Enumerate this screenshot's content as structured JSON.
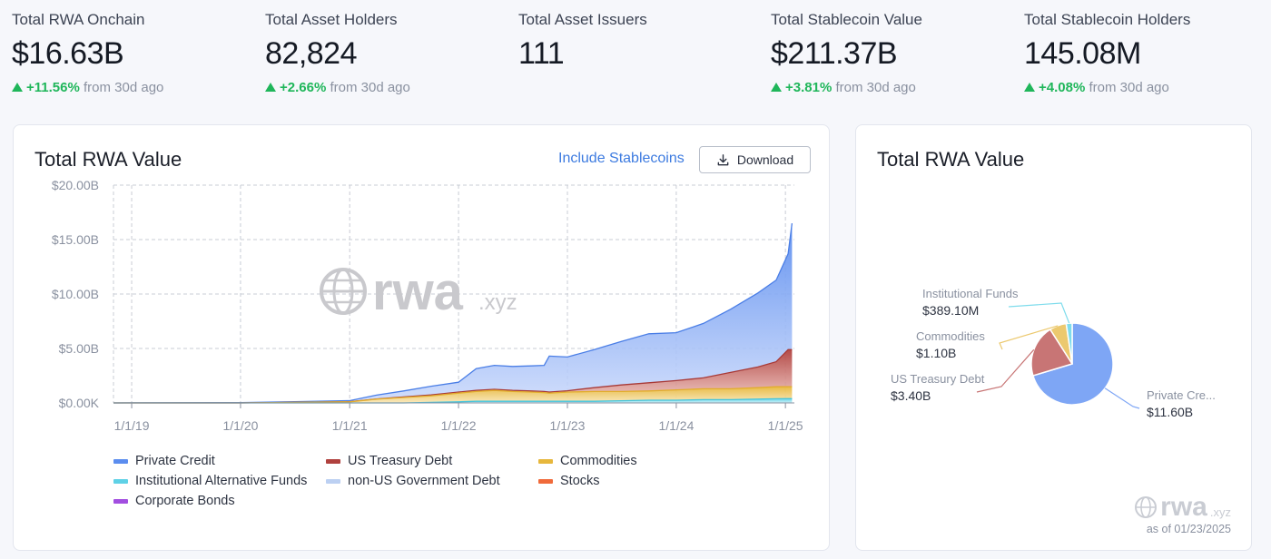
{
  "stats": [
    {
      "label": "Total RWA Onchain",
      "value": "$16.63B",
      "change": "+11.56%",
      "suffix": "from 30d ago"
    },
    {
      "label": "Total Asset Holders",
      "value": "82,824",
      "change": "+2.66%",
      "suffix": "from 30d ago"
    },
    {
      "label": "Total Asset Issuers",
      "value": "111"
    },
    {
      "label": "Total Stablecoin Value",
      "value": "$211.37B",
      "change": "+3.81%",
      "suffix": "from 30d ago"
    },
    {
      "label": "Total Stablecoin Holders",
      "value": "145.08M",
      "change": "+4.08%",
      "suffix": "from 30d ago"
    }
  ],
  "area_card": {
    "title": "Total RWA Value",
    "include_link": "Include Stablecoins",
    "download_label": "Download",
    "watermark": "rwa",
    "watermark_suffix": ".xyz"
  },
  "pie_card": {
    "title": "Total RWA Value",
    "as_of": "as of 01/23/2025",
    "watermark": "rwa",
    "watermark_suffix": ".xyz"
  },
  "colors": {
    "private_credit": "#5b8def",
    "us_treasury": "#b0413e",
    "commodities": "#e7b73c",
    "inst_alt_funds": "#5fd1e6",
    "non_us_gov": "#bcd0f2",
    "stocks": "#f06a3a",
    "corporate_bonds": "#a24ee0",
    "up": "#1fb65a"
  },
  "chart_data": [
    {
      "type": "area",
      "title": "Total RWA Value",
      "y_ticks": [
        "$20.00B",
        "$15.00B",
        "$10.00B",
        "$5.00B",
        "$0.00K"
      ],
      "x_ticks": [
        "1/1/19",
        "1/1/20",
        "1/1/21",
        "1/1/22",
        "1/1/23",
        "1/1/24",
        "1/1/25"
      ],
      "ylim": [
        0,
        20
      ],
      "y_unit": "B USD",
      "grid": true,
      "legend_position": "bottom",
      "x": [
        "2018-11-01",
        "2019-01-01",
        "2019-07-01",
        "2020-01-01",
        "2020-07-01",
        "2021-01-01",
        "2021-04-01",
        "2021-07-01",
        "2021-10-01",
        "2022-01-01",
        "2022-03-01",
        "2022-05-01",
        "2022-07-01",
        "2022-09-01",
        "2022-10-15",
        "2022-11-01",
        "2023-01-01",
        "2023-04-01",
        "2023-07-01",
        "2023-10-01",
        "2024-01-01",
        "2024-04-01",
        "2024-07-01",
        "2024-10-01",
        "2024-12-01",
        "2025-01-10",
        "2025-01-23"
      ],
      "series": [
        {
          "name": "Private Credit",
          "values": [
            0.0,
            0.01,
            0.02,
            0.03,
            0.06,
            0.1,
            0.35,
            0.55,
            0.8,
            0.9,
            2.0,
            2.2,
            2.2,
            2.3,
            2.4,
            3.3,
            3.1,
            3.5,
            4.0,
            4.5,
            4.4,
            5.0,
            5.8,
            6.8,
            7.5,
            8.8,
            11.6
          ]
        },
        {
          "name": "US Treasury Debt",
          "values": [
            0.0,
            0.0,
            0.0,
            0.0,
            0.0,
            0.01,
            0.02,
            0.05,
            0.08,
            0.1,
            0.1,
            0.1,
            0.1,
            0.1,
            0.1,
            0.1,
            0.12,
            0.35,
            0.6,
            0.75,
            0.85,
            1.0,
            1.5,
            1.9,
            2.3,
            3.4,
            3.4
          ]
        },
        {
          "name": "Commodities",
          "values": [
            0.0,
            0.0,
            0.0,
            0.0,
            0.05,
            0.1,
            0.35,
            0.5,
            0.6,
            0.8,
            0.9,
            1.0,
            0.9,
            0.85,
            0.8,
            0.75,
            0.85,
            0.9,
            0.85,
            0.85,
            0.95,
            1.0,
            1.0,
            1.05,
            1.1,
            1.1,
            1.1
          ]
        },
        {
          "name": "Institutional Alternative Funds",
          "values": [
            0.0,
            0.0,
            0.0,
            0.0,
            0.0,
            0.0,
            0.0,
            0.0,
            0.05,
            0.1,
            0.15,
            0.15,
            0.15,
            0.15,
            0.15,
            0.15,
            0.15,
            0.15,
            0.2,
            0.25,
            0.25,
            0.3,
            0.3,
            0.35,
            0.38,
            0.39,
            0.39
          ]
        },
        {
          "name": "non-US Government Debt",
          "values": [
            0.0,
            0.0,
            0.0,
            0.0,
            0.0,
            0.0,
            0.0,
            0.0,
            0.0,
            0.0,
            0.0,
            0.0,
            0.0,
            0.0,
            0.0,
            0.0,
            0.0,
            0.0,
            0.0,
            0.0,
            0.0,
            0.0,
            0.0,
            0.0,
            0.0,
            0.0,
            0.0
          ]
        },
        {
          "name": "Stocks",
          "values": [
            0.0,
            0.0,
            0.0,
            0.0,
            0.0,
            0.0,
            0.0,
            0.0,
            0.0,
            0.0,
            0.0,
            0.0,
            0.0,
            0.0,
            0.0,
            0.0,
            0.0,
            0.0,
            0.0,
            0.0,
            0.0,
            0.0,
            0.0,
            0.0,
            0.0,
            0.0,
            0.0
          ]
        },
        {
          "name": "Corporate Bonds",
          "values": [
            0.0,
            0.0,
            0.0,
            0.0,
            0.0,
            0.0,
            0.0,
            0.0,
            0.0,
            0.0,
            0.0,
            0.0,
            0.0,
            0.0,
            0.0,
            0.0,
            0.0,
            0.0,
            0.0,
            0.0,
            0.0,
            0.0,
            0.0,
            0.0,
            0.0,
            0.0,
            0.0
          ]
        }
      ]
    },
    {
      "type": "pie",
      "title": "Total RWA Value",
      "slices": [
        {
          "name": "Private Cre...",
          "label": "$11.60B",
          "value": 11.6,
          "color": "#7ea6f5"
        },
        {
          "name": "US Treasury Debt",
          "label": "$3.40B",
          "value": 3.4,
          "color": "#c87575"
        },
        {
          "name": "Commodities",
          "label": "$1.10B",
          "value": 1.1,
          "color": "#ecc96f"
        },
        {
          "name": "Institutional Funds",
          "label": "$389.10M",
          "value": 0.3891,
          "color": "#7fdcec"
        }
      ]
    }
  ]
}
